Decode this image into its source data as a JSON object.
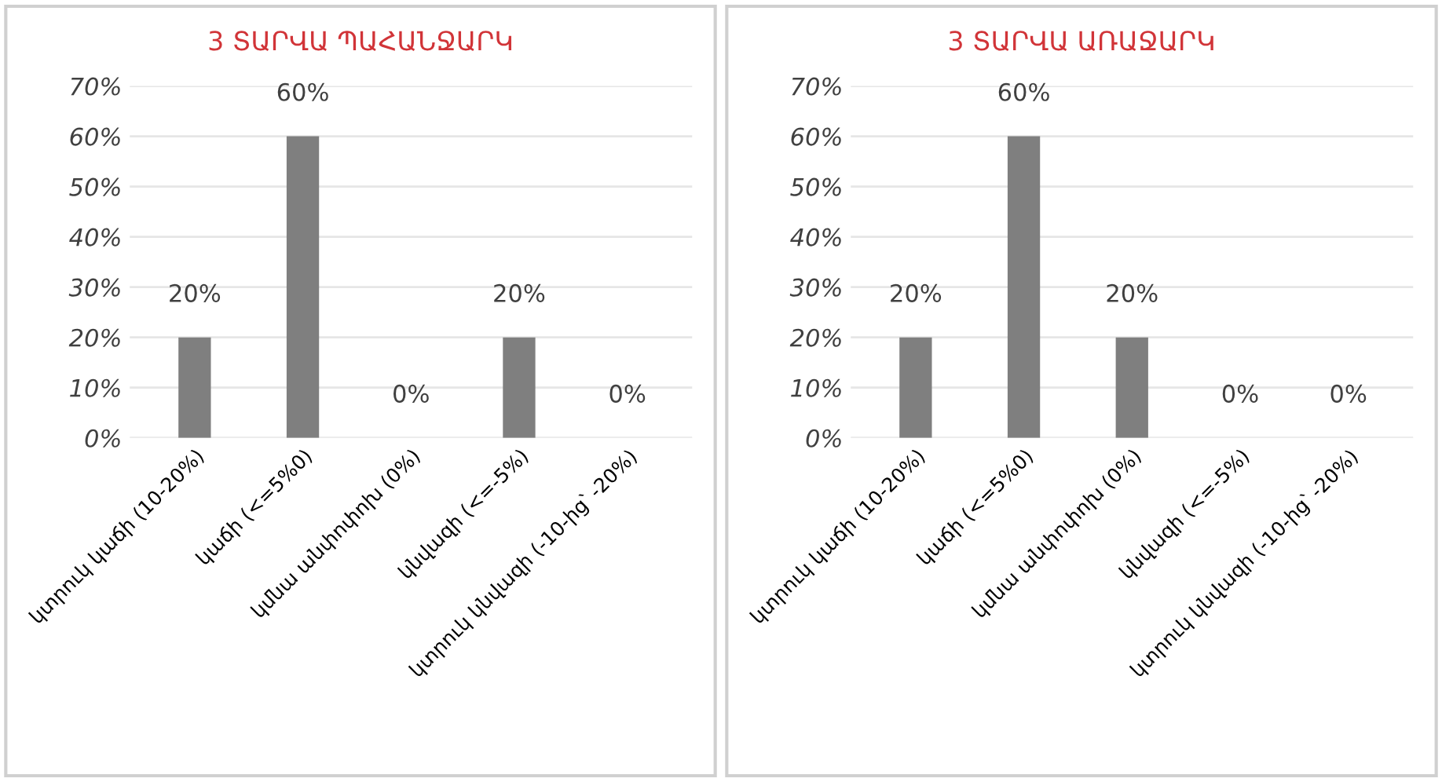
{
  "chart_data": [
    {
      "type": "bar",
      "title": "3 ՏԱՐՎԱ ՊԱՀԱՆՋԱՐԿ",
      "categories": [
        "կտրուկ կաճի (10-20%)",
        "կաճի (<=5%0)",
        "կմնա անփոփոխ (0%)",
        "կնվազի (<=-5%)",
        "կտրուկ կնվազի (-10-ից՝ -20%)"
      ],
      "values": [
        20,
        60,
        0,
        20,
        0
      ],
      "value_labels": [
        "20%",
        "60%",
        "0%",
        "20%",
        "0%"
      ],
      "color": "#7f7f7f",
      "ylim": [
        0,
        70
      ],
      "yticks": [
        {
          "value": 0,
          "label": "0%"
        },
        {
          "value": 10,
          "label": "10%"
        },
        {
          "value": 20,
          "label": "20%"
        },
        {
          "value": 30,
          "label": "30%"
        },
        {
          "value": 40,
          "label": "40%"
        },
        {
          "value": 50,
          "label": "50%"
        },
        {
          "value": 60,
          "label": "60%"
        },
        {
          "value": 70,
          "label": "70%"
        }
      ],
      "grid": "y"
    },
    {
      "type": "bar",
      "title": "3 ՏԱՐՎԱ ԱՌԱՋԱՐԿ",
      "categories": [
        "կտրուկ կաճի (10-20%)",
        "կաճի (<=5%0)",
        "կմնա անփոփոխ (0%)",
        "կնվազի (<=-5%)",
        "կտրուկ կնվազի (-10-ից՝ -20%)"
      ],
      "values": [
        20,
        60,
        20,
        0,
        0
      ],
      "value_labels": [
        "20%",
        "60%",
        "20%",
        "0%",
        "0%"
      ],
      "color": "#7f7f7f",
      "ylim": [
        0,
        70
      ],
      "yticks": [
        {
          "value": 0,
          "label": "0%"
        },
        {
          "value": 10,
          "label": "10%"
        },
        {
          "value": 20,
          "label": "20%"
        },
        {
          "value": 30,
          "label": "30%"
        },
        {
          "value": 40,
          "label": "40%"
        },
        {
          "value": 50,
          "label": "50%"
        },
        {
          "value": 60,
          "label": "60%"
        },
        {
          "value": 70,
          "label": "70%"
        }
      ],
      "grid": "y"
    }
  ]
}
